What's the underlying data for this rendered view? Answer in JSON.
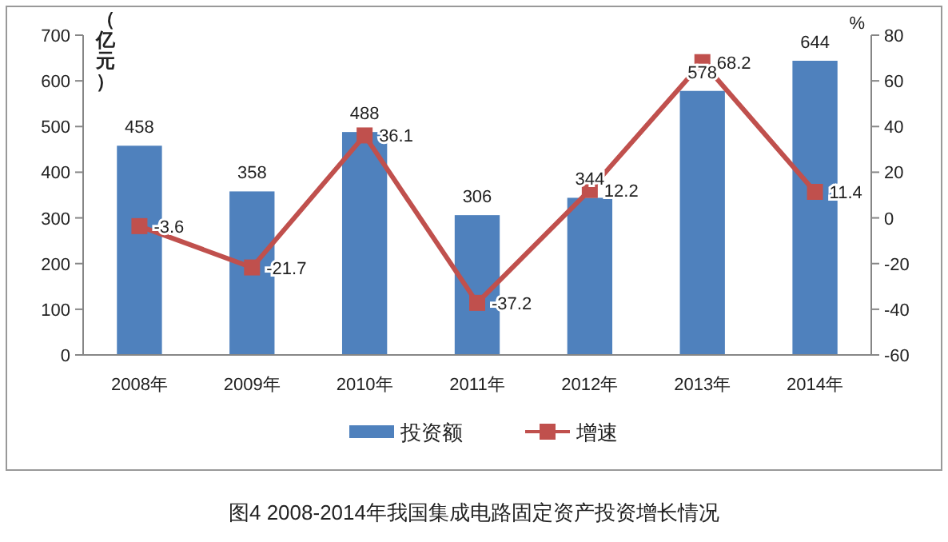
{
  "chart_data": {
    "type": "bar",
    "categories": [
      "2008年",
      "2009年",
      "2010年",
      "2011年",
      "2012年",
      "2013年",
      "2014年"
    ],
    "series": [
      {
        "name": "投资额",
        "color": "#4f81bd",
        "values": [
          458,
          358,
          488,
          306,
          344,
          578,
          644
        ]
      },
      {
        "name": "增速",
        "type": "line",
        "axis": "y2",
        "color": "#c0504d",
        "marker": "square",
        "values": [
          -3.6,
          -21.7,
          36.1,
          -37.2,
          12.2,
          68.2,
          11.4
        ]
      }
    ],
    "ylabel": "（亿元）",
    "y2label": "%",
    "ylim": [
      0,
      700
    ],
    "yticks": [
      0,
      100,
      200,
      300,
      400,
      500,
      600,
      700
    ],
    "y2lim": [
      -60,
      80
    ],
    "y2ticks": [
      -60,
      -40,
      -20,
      0,
      20,
      40,
      60,
      80
    ],
    "data_labels": true,
    "legend": "bottom",
    "grid": false,
    "annotations": [
      "图4 2008-2014年我国集成电路固定资产投资增长情况"
    ]
  }
}
